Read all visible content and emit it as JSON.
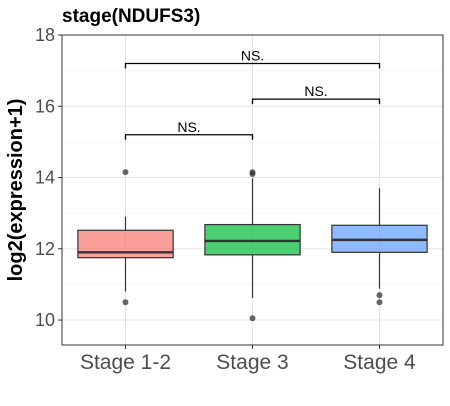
{
  "chart_data": {
    "type": "box",
    "title": "stage(NDUFS3)",
    "xlabel": "",
    "ylabel": "log2(expression+1)",
    "ylim": [
      9.3,
      18
    ],
    "yticks": [
      10,
      12,
      14,
      16,
      18
    ],
    "grid": true,
    "categories": [
      "Stage 1-2",
      "Stage 3",
      "Stage 4"
    ],
    "boxes": [
      {
        "category": "Stage 1-2",
        "color": "#F8766D",
        "whisker_low": 10.8,
        "q1": 11.75,
        "median": 11.9,
        "q3": 12.52,
        "whisker_high": 12.9,
        "outliers": [
          14.15,
          10.5
        ]
      },
      {
        "category": "Stage 3",
        "color": "#00BA38",
        "whisker_low": 10.62,
        "q1": 11.83,
        "median": 12.22,
        "q3": 12.68,
        "whisker_high": 13.98,
        "outliers": [
          14.1,
          14.15,
          10.05
        ]
      },
      {
        "category": "Stage 4",
        "color": "#619CFF",
        "whisker_low": 10.88,
        "q1": 11.9,
        "median": 12.25,
        "q3": 12.66,
        "whisker_high": 13.7,
        "outliers": [
          10.7,
          10.5
        ]
      }
    ],
    "significance": [
      {
        "from": "Stage 1-2",
        "to": "Stage 3",
        "label": "NS.",
        "y": 15.2
      },
      {
        "from": "Stage 3",
        "to": "Stage 4",
        "label": "NS.",
        "y": 16.2
      },
      {
        "from": "Stage 1-2",
        "to": "Stage 4",
        "label": "NS.",
        "y": 17.2
      }
    ]
  }
}
